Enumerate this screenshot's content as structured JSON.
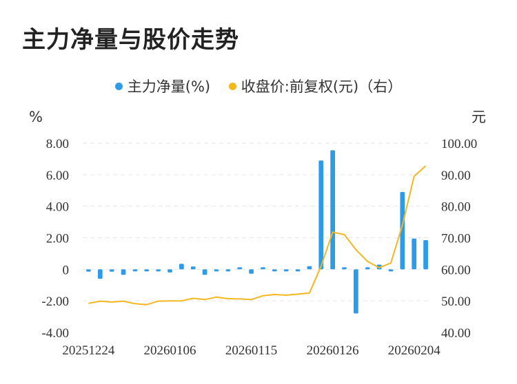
{
  "title": "主力净量与股价走势",
  "legend": {
    "net_label": "主力净量(%)",
    "price_label": "收盘价:前复权(元)（右）"
  },
  "colors": {
    "bar": "#2e9be8",
    "line": "#f4b71d",
    "grid": "#e6e6e6"
  },
  "chart_data": {
    "type": "bar+line",
    "left_axis": {
      "unit": "%",
      "ylim": [
        -4,
        8
      ],
      "ticks": [
        "-4.00",
        "-2.00",
        "0",
        "2.00",
        "4.00",
        "6.00",
        "8.00"
      ],
      "tick_values": [
        -4,
        -2,
        0,
        2,
        4,
        6,
        8
      ]
    },
    "right_axis": {
      "unit": "元",
      "ylim": [
        40,
        100
      ],
      "ticks": [
        "40.00",
        "50.00",
        "60.00",
        "70.00",
        "80.00",
        "90.00",
        "100.00"
      ],
      "tick_values": [
        40,
        50,
        60,
        70,
        80,
        90,
        100
      ]
    },
    "x_tick_labels": [
      "20251224",
      "20260106",
      "20260115",
      "20260126",
      "20260204"
    ],
    "x_tick_index": [
      0,
      7,
      14,
      21,
      28
    ],
    "net_volume": [
      -0.15,
      -0.6,
      -0.15,
      -0.35,
      -0.05,
      -0.12,
      -0.12,
      -0.2,
      0.35,
      0.18,
      -0.35,
      -0.1,
      -0.08,
      0.05,
      -0.28,
      0.1,
      -0.1,
      -0.05,
      -0.05,
      0.2,
      6.9,
      7.55,
      0.05,
      -2.8,
      0.02,
      0.3,
      -0.05,
      4.9,
      1.95,
      1.85
    ],
    "close_price": [
      49.2,
      49.9,
      49.6,
      49.9,
      49.1,
      48.8,
      49.9,
      50.0,
      50.0,
      50.8,
      50.4,
      51.2,
      50.7,
      50.6,
      50.4,
      51.6,
      52.0,
      51.8,
      52.1,
      52.5,
      61.0,
      71.8,
      71.0,
      66.2,
      62.5,
      60.5,
      62.0,
      74.0,
      89.5,
      92.8
    ]
  }
}
